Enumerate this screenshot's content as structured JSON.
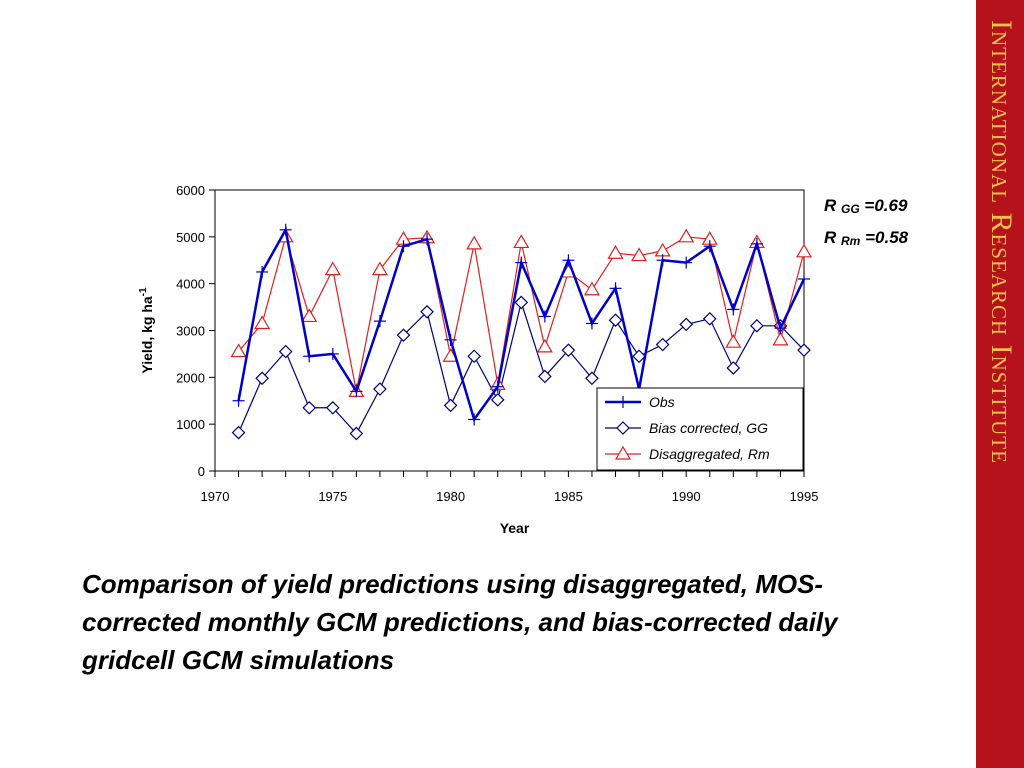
{
  "branding": {
    "text": "International Research Institute",
    "band_color": "#b5121b",
    "text_color": "#f2c14e"
  },
  "stats": [
    {
      "prefix": "R",
      "sub": "GG",
      "value": "=0.69"
    },
    {
      "prefix": "R",
      "sub": "Rm",
      "value": "=0.58"
    }
  ],
  "caption": "Comparison of yield predictions using disaggregated, MOS-corrected monthly GCM predictions, and bias-corrected daily gridcell GCM simulations",
  "chart_data": {
    "type": "line",
    "xlabel": "Year",
    "ylabel_main": "Yield, kg ha",
    "ylabel_sup": "-1",
    "xlim": [
      1970,
      1995
    ],
    "ylim": [
      0,
      6000
    ],
    "xticks": [
      1970,
      1975,
      1980,
      1985,
      1990,
      1995
    ],
    "yticks": [
      0,
      1000,
      2000,
      3000,
      4000,
      5000,
      6000
    ],
    "grid": false,
    "legend_position": "bottom-right",
    "x": [
      1971,
      1972,
      1973,
      1974,
      1975,
      1976,
      1977,
      1978,
      1979,
      1980,
      1981,
      1982,
      1983,
      1984,
      1985,
      1986,
      1987,
      1988,
      1989,
      1990,
      1991,
      1992,
      1993,
      1994,
      1995
    ],
    "series": [
      {
        "name": "Obs",
        "color": "#0000cc",
        "marker": "plus",
        "values": [
          1500,
          4250,
          5150,
          2450,
          2500,
          1700,
          3200,
          4800,
          4950,
          2800,
          1100,
          1800,
          4450,
          3300,
          4500,
          3150,
          3900,
          1750,
          4500,
          4450,
          4800,
          3450,
          4850,
          3050,
          4100
        ]
      },
      {
        "name": "Bias corrected, GG",
        "color": "#000080",
        "marker": "diamond",
        "values": [
          820,
          1980,
          2550,
          1350,
          1350,
          800,
          1750,
          2900,
          3400,
          1400,
          2450,
          1520,
          3600,
          2020,
          2580,
          1980,
          3220,
          2450,
          2700,
          3130,
          3250,
          2200,
          3100,
          3100,
          2580
        ]
      },
      {
        "name": "Disaggregated, Rm",
        "color": "#e02020",
        "marker": "triangle",
        "values": [
          2550,
          3150,
          5000,
          3300,
          4300,
          1700,
          4300,
          4950,
          4980,
          2450,
          4850,
          1850,
          4880,
          2650,
          4250,
          3870,
          4650,
          4600,
          4700,
          5000,
          4950,
          2750,
          4880,
          2800,
          4680
        ]
      }
    ]
  }
}
